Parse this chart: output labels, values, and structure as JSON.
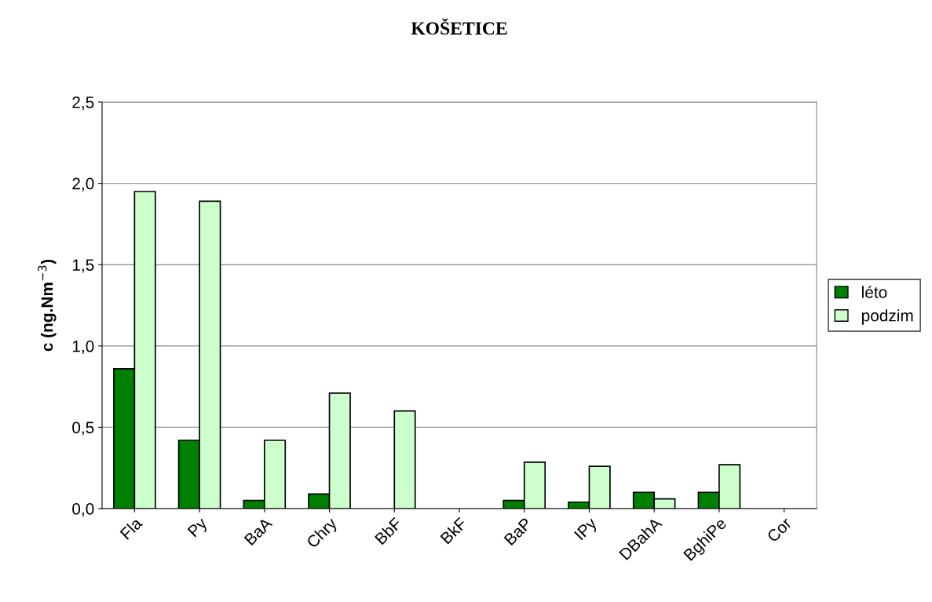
{
  "chart_data": {
    "type": "bar",
    "title": "KOŠETICE",
    "ylabel": "c (ng.Nm$^{−3}$)",
    "categories": [
      "Fla",
      "Py",
      "BaA",
      "Chry",
      "BbF",
      "BkF",
      "BaP",
      "IPy",
      "DBahA",
      "BghiPe",
      "Cor"
    ],
    "series": [
      {
        "name": "léto",
        "color": "#008000",
        "values": [
          0.86,
          0.42,
          0.05,
          0.09,
          null,
          null,
          0.05,
          0.04,
          0.1,
          0.1,
          null
        ]
      },
      {
        "name": "podzim",
        "color": "#ccffcc",
        "values": [
          1.95,
          1.89,
          0.42,
          0.71,
          0.6,
          null,
          0.285,
          0.26,
          0.06,
          0.27,
          null
        ]
      }
    ],
    "ylim": [
      0,
      2.5
    ],
    "yticks": [
      {
        "value": 0,
        "label": "0,0"
      },
      {
        "value": 0.5,
        "label": "0,5"
      },
      {
        "value": 1.0,
        "label": "1,0"
      },
      {
        "value": 1.5,
        "label": "1,5"
      },
      {
        "value": 2.0,
        "label": "2,0"
      },
      {
        "value": 2.5,
        "label": "2,5"
      }
    ],
    "grid": "y",
    "legend": "right"
  }
}
